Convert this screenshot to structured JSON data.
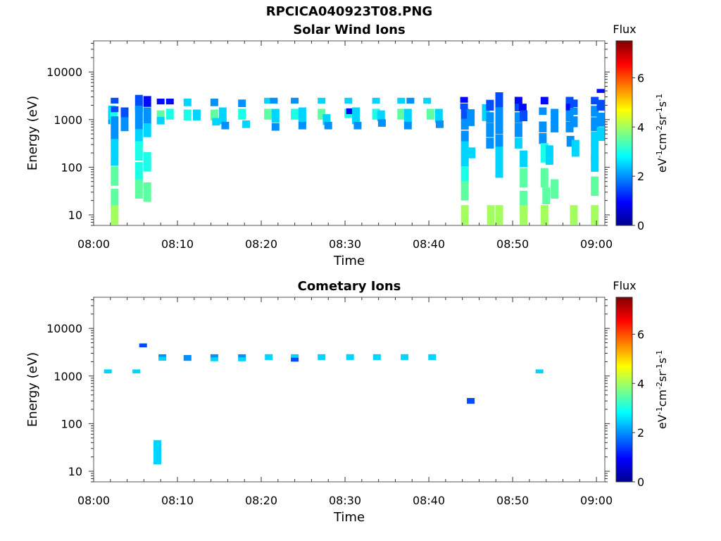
{
  "figure_title": "RPCICA040923T08.PNG",
  "colors": {
    "jet": [
      "#00008f",
      "#0000ff",
      "#0080ff",
      "#00ffff",
      "#80ff80",
      "#ffff00",
      "#ff8000",
      "#ff0000",
      "#800000"
    ]
  },
  "chart_data": [
    {
      "type": "heatmap",
      "title": "Solar Wind Ions",
      "xlabel": "Time",
      "ylabel": "Energy (eV)",
      "y_scale": "log",
      "x_ticks": [
        "08:00",
        "08:10",
        "08:20",
        "08:30",
        "08:40",
        "08:50",
        "09:00"
      ],
      "y_ticks": [
        "10",
        "100",
        "1000",
        "10000"
      ],
      "xlim": [
        "08:00",
        "09:01"
      ],
      "ylim": [
        6,
        45000
      ],
      "colorbar": {
        "label_top": "Flux",
        "ticks": [
          "0",
          "2",
          "4",
          "6"
        ],
        "range": [
          0,
          7.5
        ]
      },
      "cells": [
        [
          "08:02.2",
          1200,
          1.5,
          2
        ],
        [
          "08:02.2",
          1400,
          1.4,
          2.5
        ],
        [
          "08:02.4",
          1200,
          1.5,
          3
        ],
        [
          "08:02.5",
          2500,
          1.15,
          1.5
        ],
        [
          "08:02.5",
          1650,
          1.15,
          1.5
        ],
        [
          "08:02.5",
          900,
          1.3,
          2
        ],
        [
          "08:02.5",
          500,
          1.4,
          2
        ],
        [
          "08:02.5",
          280,
          1.4,
          2.5
        ],
        [
          "08:02.5",
          150,
          1.4,
          2.5
        ],
        [
          "08:02.5",
          65,
          1.6,
          3.5
        ],
        [
          "08:02.5",
          22,
          1.6,
          3.5
        ],
        [
          "08:02.5",
          10,
          1.6,
          4
        ],
        [
          "08:03.7",
          1200,
          1.5,
          1.5
        ],
        [
          "08:03.7",
          800,
          1.4,
          2
        ],
        [
          "08:05.4",
          2200,
          1.5,
          1.5
        ],
        [
          "08:05.4",
          1400,
          1.4,
          2
        ],
        [
          "08:05.4",
          800,
          1.3,
          2
        ],
        [
          "08:05.4",
          450,
          1.4,
          2.5
        ],
        [
          "08:05.4",
          220,
          1.6,
          3
        ],
        [
          "08:05.4",
          80,
          1.6,
          3
        ],
        [
          "08:05.4",
          35,
          1.6,
          3.5
        ],
        [
          "08:06.4",
          2400,
          1.3,
          1
        ],
        [
          "08:06.4",
          1200,
          1.5,
          2
        ],
        [
          "08:06.4",
          600,
          1.4,
          2.5
        ],
        [
          "08:06.4",
          130,
          1.6,
          3
        ],
        [
          "08:06.4",
          30,
          1.6,
          3.5
        ],
        [
          "08:08.0",
          2400,
          1.15,
          1
        ],
        [
          "08:08.0",
          1200,
          1.3,
          3.5
        ],
        [
          "08:08.0",
          950,
          1.2,
          2.5
        ],
        [
          "08:09.1",
          2400,
          1.15,
          1
        ],
        [
          "08:09.1",
          1300,
          1.3,
          3
        ],
        [
          "08:11.2",
          2300,
          1.2,
          2.5
        ],
        [
          "08:11.2",
          1250,
          1.3,
          3
        ],
        [
          "08:12.3",
          1250,
          1.3,
          2.5
        ],
        [
          "08:14.4",
          2300,
          1.2,
          2
        ],
        [
          "08:14.4",
          1250,
          1.3,
          3.5
        ],
        [
          "08:14.6",
          900,
          1.2,
          2.5
        ],
        [
          "08:15.4",
          1200,
          1.5,
          2.5
        ],
        [
          "08:15.7",
          750,
          1.2,
          2
        ],
        [
          "08:17.7",
          2200,
          1.2,
          2
        ],
        [
          "08:17.7",
          1300,
          1.3,
          3
        ],
        [
          "08:18.2",
          800,
          1.2,
          2.5
        ],
        [
          "08:20.8",
          2500,
          1.15,
          2.5
        ],
        [
          "08:20.8",
          1300,
          1.3,
          3.5
        ],
        [
          "08:21.5",
          2500,
          1.15,
          2
        ],
        [
          "08:21.7",
          1200,
          1.4,
          2.5
        ],
        [
          "08:21.7",
          700,
          1.2,
          2
        ],
        [
          "08:24.0",
          2500,
          1.15,
          2
        ],
        [
          "08:24.0",
          1300,
          1.3,
          3
        ],
        [
          "08:24.9",
          1200,
          1.5,
          2.5
        ],
        [
          "08:24.9",
          750,
          1.2,
          2
        ],
        [
          "08:27.2",
          2500,
          1.15,
          2.5
        ],
        [
          "08:27.2",
          1300,
          1.3,
          3.5
        ],
        [
          "08:27.8",
          1000,
          1.3,
          2.5
        ],
        [
          "08:28.0",
          750,
          1.2,
          2
        ],
        [
          "08:30.4",
          2500,
          1.15,
          2.5
        ],
        [
          "08:30.4",
          1350,
          1.25,
          3
        ],
        [
          "08:30.6",
          1500,
          1.15,
          1
        ],
        [
          "08:31.3",
          1200,
          1.5,
          2.5
        ],
        [
          "08:31.5",
          750,
          1.2,
          2
        ],
        [
          "08:33.7",
          2500,
          1.15,
          2.5
        ],
        [
          "08:33.7",
          1300,
          1.3,
          3
        ],
        [
          "08:34.3",
          1200,
          1.3,
          2.5
        ],
        [
          "08:34.4",
          850,
          1.2,
          2
        ],
        [
          "08:36.7",
          2500,
          1.15,
          2.5
        ],
        [
          "08:36.7",
          1300,
          1.3,
          3.5
        ],
        [
          "08:37.5",
          1200,
          1.4,
          2.5
        ],
        [
          "08:37.5",
          750,
          1.2,
          2
        ],
        [
          "08:37.8",
          2500,
          1.15,
          2
        ],
        [
          "08:39.8",
          2500,
          1.15,
          2.5
        ],
        [
          "08:40.2",
          1300,
          1.3,
          3.5
        ],
        [
          "08:41.2",
          1200,
          1.4,
          2.5
        ],
        [
          "08:41.3",
          800,
          1.2,
          2
        ],
        [
          "08:44.2",
          2600,
          1.15,
          1
        ],
        [
          "08:44.2",
          1900,
          1.15,
          1.5
        ],
        [
          "08:44.3",
          1300,
          1.3,
          1.5
        ],
        [
          "08:44.3",
          800,
          1.3,
          2
        ],
        [
          "08:44.3",
          450,
          1.3,
          2
        ],
        [
          "08:44.3",
          250,
          1.4,
          2.5
        ],
        [
          "08:44.3",
          140,
          1.4,
          2.5
        ],
        [
          "08:44.3",
          70,
          1.5,
          3
        ],
        [
          "08:44.3",
          32,
          1.6,
          3.5
        ],
        [
          "08:44.3",
          10,
          1.6,
          4
        ],
        [
          "08:45.0",
          1100,
          1.5,
          2
        ],
        [
          "08:45.1",
          200,
          1.3,
          2.5
        ],
        [
          "08:46.8",
          1400,
          1.5,
          2.5
        ],
        [
          "08:47.3",
          2000,
          1.3,
          1.5
        ],
        [
          "08:47.3",
          1100,
          1.3,
          2
        ],
        [
          "08:47.3",
          600,
          1.4,
          2
        ],
        [
          "08:47.3",
          320,
          1.3,
          2
        ],
        [
          "08:47.4",
          10,
          1.6,
          4
        ],
        [
          "08:48.4",
          2500,
          1.5,
          1.5
        ],
        [
          "08:48.4",
          1300,
          1.4,
          2
        ],
        [
          "08:48.4",
          700,
          1.4,
          2
        ],
        [
          "08:48.4",
          350,
          1.4,
          2
        ],
        [
          "08:48.4",
          180,
          1.5,
          2.5
        ],
        [
          "08:48.4",
          90,
          1.5,
          2.5
        ],
        [
          "08:48.4",
          10,
          1.6,
          4
        ],
        [
          "08:50.7",
          2500,
          1.2,
          1
        ],
        [
          "08:50.7",
          1800,
          1.2,
          1.5
        ],
        [
          "08:50.7",
          1100,
          1.3,
          2
        ],
        [
          "08:50.7",
          600,
          1.4,
          2
        ],
        [
          "08:50.7",
          320,
          1.3,
          2.5
        ],
        [
          "08:51.2",
          1800,
          1.2,
          1
        ],
        [
          "08:51.3",
          1200,
          1.3,
          1.5
        ],
        [
          "08:51.3",
          150,
          1.5,
          2.5
        ],
        [
          "08:51.3",
          60,
          1.6,
          3.5
        ],
        [
          "08:51.3",
          20,
          1.6,
          3.5
        ],
        [
          "08:51.3",
          10,
          1.6,
          4
        ],
        [
          "08:53.8",
          2500,
          1.2,
          1
        ],
        [
          "08:53.6",
          1500,
          1.2,
          2
        ],
        [
          "08:53.6",
          700,
          1.3,
          2
        ],
        [
          "08:53.6",
          400,
          1.3,
          2
        ],
        [
          "08:53.8",
          200,
          1.6,
          3
        ],
        [
          "08:53.8",
          60,
          1.6,
          3.5
        ],
        [
          "08:54.0",
          25,
          1.5,
          3.5
        ],
        [
          "08:53.8",
          10,
          1.6,
          4
        ],
        [
          "08:54.4",
          180,
          1.6,
          2.5
        ],
        [
          "08:55.0",
          1200,
          1.4,
          2
        ],
        [
          "08:55.0",
          700,
          1.3,
          2
        ],
        [
          "08:55.0",
          35,
          1.6,
          3.5
        ],
        [
          "08:56.8",
          2500,
          1.2,
          1.5
        ],
        [
          "08:56.8",
          1800,
          1.2,
          1
        ],
        [
          "08:56.8",
          1200,
          1.3,
          2
        ],
        [
          "08:56.8",
          700,
          1.3,
          2
        ],
        [
          "08:56.9",
          350,
          1.3,
          2
        ],
        [
          "08:57.3",
          2200,
          1.2,
          1.5
        ],
        [
          "08:57.3",
          1500,
          1.2,
          2
        ],
        [
          "08:57.3",
          900,
          1.3,
          2
        ],
        [
          "08:57.3",
          10,
          1.6,
          4
        ],
        [
          "08:57.5",
          250,
          1.5,
          2.5
        ],
        [
          "08:59.8",
          2500,
          1.2,
          1.5
        ],
        [
          "08:59.8",
          1500,
          1.3,
          2
        ],
        [
          "08:59.8",
          800,
          1.4,
          2
        ],
        [
          "08:59.8",
          400,
          1.4,
          2.5
        ],
        [
          "08:59.8",
          200,
          1.5,
          2.5
        ],
        [
          "08:59.8",
          120,
          1.5,
          2.5
        ],
        [
          "08:59.8",
          40,
          1.6,
          3.5
        ],
        [
          "08:59.8",
          10,
          1.6,
          4
        ],
        [
          "09:00.5",
          4000,
          1.1,
          1
        ],
        [
          "09:00.5",
          2000,
          1.3,
          1.5
        ],
        [
          "09:00.5",
          1000,
          1.4,
          2
        ],
        [
          "09:00.5",
          500,
          1.4,
          2.5
        ]
      ]
    },
    {
      "type": "heatmap",
      "title": "Cometary Ions",
      "xlabel": "Time",
      "ylabel": "Energy (eV)",
      "y_scale": "log",
      "x_ticks": [
        "08:00",
        "08:10",
        "08:20",
        "08:30",
        "08:40",
        "08:50",
        "09:00"
      ],
      "y_ticks": [
        "10",
        "100",
        "1000",
        "10000"
      ],
      "xlim": [
        "08:00",
        "09:01"
      ],
      "ylim": [
        6,
        45000
      ],
      "colorbar": {
        "label_top": "Flux",
        "ticks": [
          "0",
          "2",
          "4",
          "6"
        ],
        "range": [
          0,
          7.5
        ]
      },
      "cells": [
        [
          "08:01.7",
          1250,
          1.1,
          2.5
        ],
        [
          "08:05.1",
          1250,
          1.1,
          2.5
        ],
        [
          "08:05.9",
          4400,
          1.1,
          1.5
        ],
        [
          "08:07.6",
          25,
          1.8,
          2.5
        ],
        [
          "08:08.2",
          2600,
          1.1,
          2
        ],
        [
          "08:08.2",
          2300,
          1.1,
          2.5
        ],
        [
          "08:11.2",
          2400,
          1.15,
          2
        ],
        [
          "08:14.4",
          2600,
          1.1,
          2
        ],
        [
          "08:14.4",
          2250,
          1.1,
          2.5
        ],
        [
          "08:17.7",
          2600,
          1.1,
          2
        ],
        [
          "08:17.7",
          2250,
          1.1,
          2.5
        ],
        [
          "08:20.9",
          2500,
          1.15,
          2.5
        ],
        [
          "08:24.0",
          2600,
          1.1,
          2.5
        ],
        [
          "08:24.0",
          2200,
          1.1,
          1.5
        ],
        [
          "08:27.2",
          2500,
          1.15,
          2.5
        ],
        [
          "08:30.6",
          2500,
          1.15,
          2.5
        ],
        [
          "08:33.8",
          2500,
          1.15,
          2.5
        ],
        [
          "08:37.1",
          2500,
          1.15,
          2.5
        ],
        [
          "08:40.4",
          2500,
          1.15,
          2.5
        ],
        [
          "08:45.0",
          300,
          1.15,
          1.5
        ],
        [
          "08:53.2",
          1250,
          1.1,
          2.5
        ]
      ]
    }
  ]
}
